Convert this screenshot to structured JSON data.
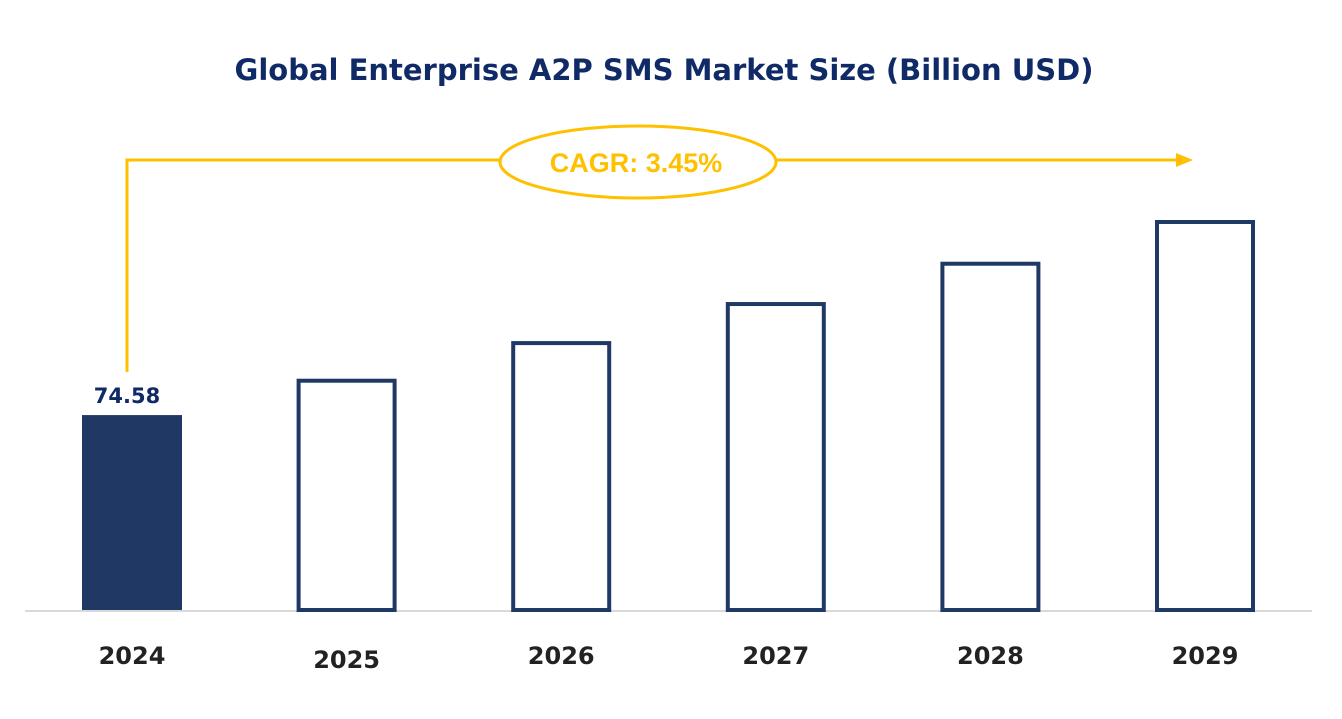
{
  "chart_data": {
    "type": "bar",
    "title": "Global Enterprise A2P SMS Market Size (Billion USD)",
    "xlabel": "",
    "ylabel": "",
    "categories": [
      "2024",
      "2025",
      "2026",
      "2027",
      "2028",
      "2029"
    ],
    "values": [
      74.58,
      77.15,
      79.81,
      82.57,
      85.42,
      88.37
    ],
    "data_labels": {
      "2024": "74.58"
    },
    "ylim": [
      60.8,
      88.37
    ],
    "grid": false,
    "legend": "none",
    "annotation": "CAGR: 3.45%",
    "colors": {
      "highlight_bar": "#203864",
      "bar_outline": "#203864",
      "annotation": "#FFC000",
      "title": "#0f2a66",
      "baseline": "#d9d9d9"
    }
  }
}
